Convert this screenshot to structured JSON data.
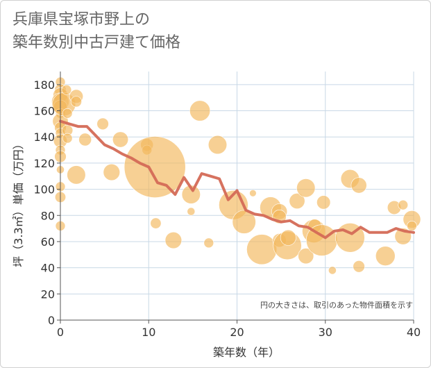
{
  "chart_data": {
    "type": "scatter",
    "title_line1": "兵庫県宝塚市野上の",
    "title_line2": "築年数別中古戸建て価格",
    "xlabel": "築年数（年）",
    "ylabel": "坪（3.3㎡）単価（万円）",
    "xlim": [
      0,
      40
    ],
    "ylim": [
      0,
      190
    ],
    "xticks": [
      0,
      10,
      20,
      30,
      40
    ],
    "yticks": [
      0,
      20,
      40,
      60,
      80,
      100,
      120,
      140,
      160,
      180
    ],
    "note": "円の大きさは、取引のあった物件面積を示す",
    "colors": {
      "bubble": "#f2b75a",
      "line": "#d46a56",
      "grid": "#c8d8e6"
    },
    "bubbles": [
      {
        "x": 0,
        "y": 182,
        "s": 1.0
      },
      {
        "x": 0,
        "y": 176,
        "s": 1.2
      },
      {
        "x": 0,
        "y": 172,
        "s": 1.5
      },
      {
        "x": 0,
        "y": 167,
        "s": 1.8
      },
      {
        "x": 0,
        "y": 163,
        "s": 1.4
      },
      {
        "x": 0,
        "y": 158,
        "s": 1.0
      },
      {
        "x": 0,
        "y": 152,
        "s": 1.6
      },
      {
        "x": 0,
        "y": 147,
        "s": 1.2
      },
      {
        "x": 0,
        "y": 143,
        "s": 1.0
      },
      {
        "x": 0,
        "y": 137,
        "s": 1.4
      },
      {
        "x": 0,
        "y": 130,
        "s": 1.0
      },
      {
        "x": 0,
        "y": 125,
        "s": 1.2
      },
      {
        "x": 0,
        "y": 115,
        "s": 0.8
      },
      {
        "x": 0,
        "y": 102,
        "s": 1.0
      },
      {
        "x": 0,
        "y": 94,
        "s": 1.1
      },
      {
        "x": 0,
        "y": 72,
        "s": 1.0
      },
      {
        "x": 0.4,
        "y": 165,
        "s": 2.4
      },
      {
        "x": 0.7,
        "y": 176,
        "s": 1.0
      },
      {
        "x": 0.8,
        "y": 158,
        "s": 1.0
      },
      {
        "x": 0.8,
        "y": 145,
        "s": 1.1
      },
      {
        "x": 0.8,
        "y": 139,
        "s": 1.0
      },
      {
        "x": 1.8,
        "y": 171,
        "s": 1.4
      },
      {
        "x": 1.8,
        "y": 167,
        "s": 1.1
      },
      {
        "x": 1.8,
        "y": 111,
        "s": 1.9
      },
      {
        "x": 2.8,
        "y": 138,
        "s": 1.3
      },
      {
        "x": 4.8,
        "y": 150,
        "s": 1.2
      },
      {
        "x": 5.8,
        "y": 113,
        "s": 1.7
      },
      {
        "x": 6.8,
        "y": 138,
        "s": 1.6
      },
      {
        "x": 9.8,
        "y": 134,
        "s": 1.3
      },
      {
        "x": 9.8,
        "y": 130,
        "s": 1.0
      },
      {
        "x": 10.7,
        "y": 117,
        "s": 6.3
      },
      {
        "x": 10.8,
        "y": 74,
        "s": 1.1
      },
      {
        "x": 12.8,
        "y": 61,
        "s": 1.7
      },
      {
        "x": 14.8,
        "y": 96,
        "s": 1.9
      },
      {
        "x": 14.8,
        "y": 83,
        "s": 0.8
      },
      {
        "x": 15.8,
        "y": 160,
        "s": 2.1
      },
      {
        "x": 16.8,
        "y": 59,
        "s": 1.0
      },
      {
        "x": 17.8,
        "y": 134,
        "s": 1.9
      },
      {
        "x": 19.6,
        "y": 88,
        "s": 3.0
      },
      {
        "x": 20.8,
        "y": 75,
        "s": 2.4
      },
      {
        "x": 21.8,
        "y": 97,
        "s": 0.7
      },
      {
        "x": 22.8,
        "y": 54,
        "s": 3.1
      },
      {
        "x": 23.8,
        "y": 86,
        "s": 2.2
      },
      {
        "x": 24.8,
        "y": 83,
        "s": 1.6
      },
      {
        "x": 24.8,
        "y": 79,
        "s": 1.4
      },
      {
        "x": 24.8,
        "y": 61,
        "s": 1.4
      },
      {
        "x": 25.7,
        "y": 57,
        "s": 2.9
      },
      {
        "x": 25.8,
        "y": 63,
        "s": 1.6
      },
      {
        "x": 26.8,
        "y": 91,
        "s": 1.6
      },
      {
        "x": 27.8,
        "y": 101,
        "s": 1.9
      },
      {
        "x": 27.8,
        "y": 49,
        "s": 1.6
      },
      {
        "x": 28.7,
        "y": 68,
        "s": 2.4
      },
      {
        "x": 28.8,
        "y": 72,
        "s": 1.4
      },
      {
        "x": 29.6,
        "y": 61,
        "s": 3.2
      },
      {
        "x": 29.8,
        "y": 90,
        "s": 1.4
      },
      {
        "x": 30.8,
        "y": 38,
        "s": 0.8
      },
      {
        "x": 32.8,
        "y": 108,
        "s": 1.9
      },
      {
        "x": 32.8,
        "y": 63,
        "s": 3.0
      },
      {
        "x": 33.8,
        "y": 103,
        "s": 1.6
      },
      {
        "x": 33.8,
        "y": 41,
        "s": 1.2
      },
      {
        "x": 36.8,
        "y": 49,
        "s": 2.0
      },
      {
        "x": 37.8,
        "y": 86,
        "s": 1.4
      },
      {
        "x": 38.8,
        "y": 88,
        "s": 1.0
      },
      {
        "x": 38.8,
        "y": 64,
        "s": 1.7
      },
      {
        "x": 39.8,
        "y": 77,
        "s": 1.8
      },
      {
        "x": 39.8,
        "y": 72,
        "s": 1.0
      }
    ],
    "trend": {
      "x": [
        0,
        1,
        2,
        3,
        4,
        5,
        6,
        7,
        8,
        9,
        10,
        11,
        12,
        13,
        14,
        15,
        16,
        17,
        18,
        19,
        20,
        21,
        22,
        23,
        24,
        25,
        26,
        27,
        28,
        29,
        30,
        31,
        32,
        33,
        34,
        35,
        36,
        37,
        38,
        39,
        40
      ],
      "y": [
        152,
        150,
        148,
        148,
        141,
        134,
        131,
        127,
        124,
        120,
        117,
        105,
        103,
        96,
        109,
        99,
        112,
        110,
        108,
        92,
        99,
        84,
        81,
        80,
        77,
        75,
        76,
        72,
        71,
        67,
        63,
        68,
        69,
        66,
        71,
        67,
        67,
        67,
        70,
        68,
        67
      ]
    }
  }
}
